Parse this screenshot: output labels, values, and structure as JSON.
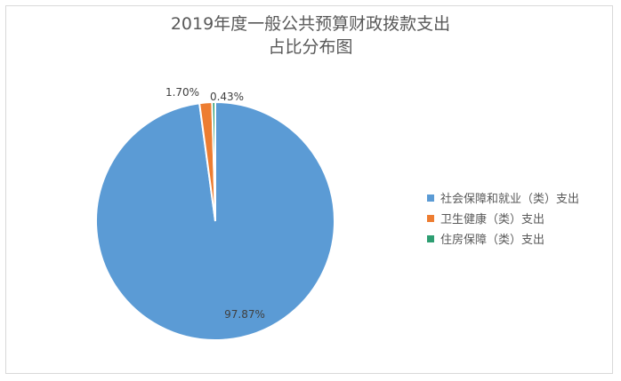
{
  "colors": {
    "series1": "#5b9bd5",
    "series2": "#ed7d31",
    "series3": "#2e9e72"
  },
  "chart_data": {
    "type": "pie",
    "title": "2019年度一般公共预算财政拨款支出",
    "subtitle": "占比分布图",
    "categories": [
      "社会保障和就业（类）支出",
      "卫生健康（类）支出",
      "住房保障（类）支出"
    ],
    "values": [
      97.87,
      1.7,
      0.43
    ],
    "data_labels": [
      "97.87%",
      "1.70%",
      "0.43%"
    ],
    "legend_position": "right"
  }
}
